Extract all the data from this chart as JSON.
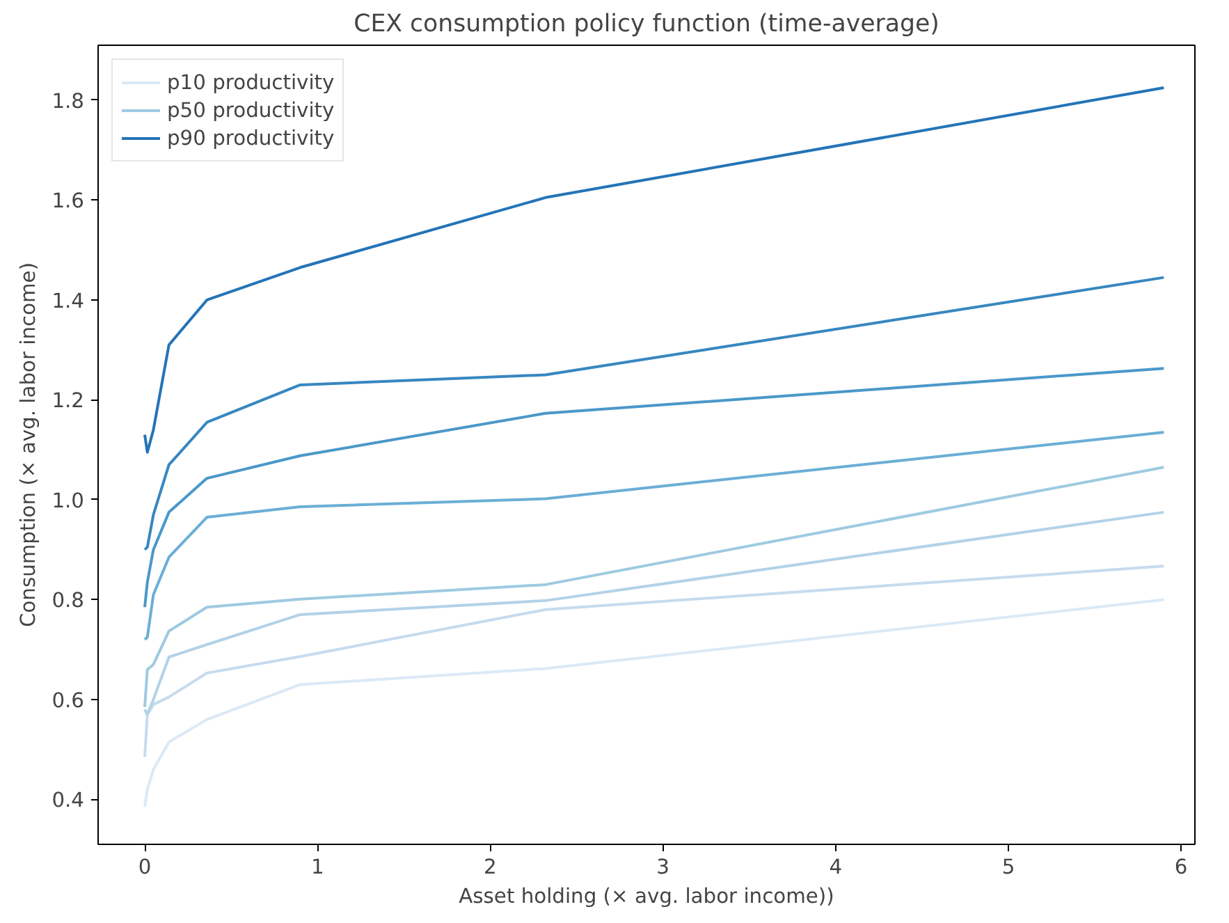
{
  "chart_data": {
    "type": "line",
    "title": "CEX consumption policy function (time-average)",
    "xlabel": "Asset holding (× avg. labor income))",
    "ylabel": "Consumption (× avg. labor income)",
    "x": [
      0,
      0.015,
      0.05,
      0.14,
      0.36,
      0.9,
      2.32,
      5.9
    ],
    "series": [
      {
        "name": "p10 productivity",
        "color": "#dbe9f6",
        "values": [
          0.385,
          0.42,
          0.46,
          0.515,
          0.56,
          0.63,
          0.662,
          0.8
        ]
      },
      {
        "color": "#c6dbef",
        "values": [
          0.485,
          0.57,
          0.59,
          0.605,
          0.653,
          0.686,
          0.78,
          0.867
        ]
      },
      {
        "color": "#b2d2e8",
        "values": [
          0.58,
          0.57,
          0.6,
          0.685,
          0.71,
          0.77,
          0.798,
          0.975
        ]
      },
      {
        "name": "p50 productivity",
        "color": "#9ecae1",
        "values": [
          0.585,
          0.66,
          0.67,
          0.737,
          0.785,
          0.801,
          0.83,
          1.065
        ]
      },
      {
        "color": "#6baed6",
        "values": [
          0.72,
          0.725,
          0.81,
          0.885,
          0.965,
          0.986,
          1.002,
          1.135
        ]
      },
      {
        "color": "#4a98c9",
        "values": [
          0.785,
          0.835,
          0.9,
          0.975,
          1.043,
          1.088,
          1.173,
          1.263
        ]
      },
      {
        "color": "#3787c0",
        "values": [
          0.9,
          0.905,
          0.97,
          1.07,
          1.155,
          1.23,
          1.25,
          1.445
        ]
      },
      {
        "name": "p90 productivity",
        "color": "#2474b7",
        "values": [
          1.13,
          1.095,
          1.14,
          1.31,
          1.4,
          1.465,
          1.605,
          1.825
        ]
      }
    ],
    "xlim": [
      -0.27,
      6.08
    ],
    "ylim": [
      0.31,
      1.91
    ],
    "xticks": [
      0,
      1,
      2,
      3,
      4,
      5,
      6
    ],
    "yticks": [
      {
        "value": 0.4,
        "label": "0.4"
      },
      {
        "value": 0.6,
        "label": "0.6"
      },
      {
        "value": 0.8,
        "label": "0.8"
      },
      {
        "value": 1.0,
        "label": "1.0"
      },
      {
        "value": 1.2,
        "label": "1.2"
      },
      {
        "value": 1.4,
        "label": "1.4"
      },
      {
        "value": 1.6,
        "label": "1.6"
      },
      {
        "value": 1.8,
        "label": "1.8"
      }
    ],
    "legend": "top left",
    "grid": false,
    "line_style": "solid"
  }
}
